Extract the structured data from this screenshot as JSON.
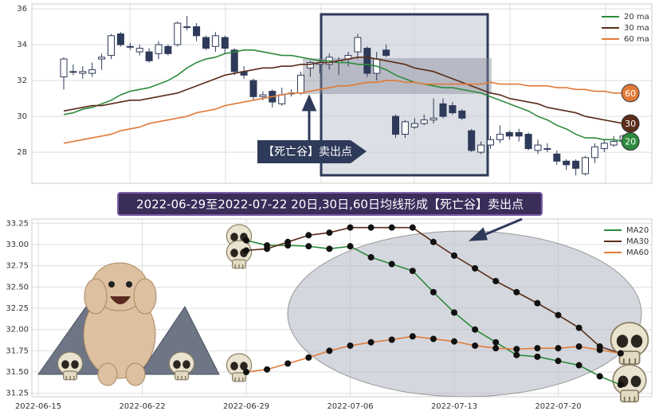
{
  "chart_data": [
    {
      "type": "candlestick",
      "open": [
        32.2,
        32.5,
        32.4,
        32.4,
        33.2,
        33.4,
        34.6,
        33.9,
        33.6,
        33.6,
        33.5,
        33.9,
        34.0,
        35.0,
        35.0,
        34.4,
        33.9,
        34.4,
        33.7,
        32.5,
        32.0,
        31.1,
        31.4,
        30.7,
        31.3,
        31.3,
        32.7,
        32.9,
        32.9,
        33.0,
        33.2,
        33.6,
        33.8,
        32.4,
        33.7,
        30.0,
        29.0,
        29.4,
        29.6,
        29.8,
        30.7,
        30.6,
        30.3,
        29.2,
        28.0,
        28.4,
        28.7,
        29.1,
        29.1,
        29.0,
        28.1,
        28.2,
        27.9,
        27.5,
        27.5,
        26.8,
        27.7,
        28.2,
        28.4,
        28.6
      ],
      "high": [
        33.3,
        32.9,
        32.8,
        33.0,
        33.5,
        34.6,
        34.7,
        34.1,
        34.0,
        33.8,
        34.2,
        34.0,
        35.3,
        35.6,
        35.2,
        34.5,
        34.7,
        34.5,
        33.8,
        32.8,
        32.1,
        31.4,
        31.5,
        31.6,
        31.5,
        32.5,
        33.1,
        33.2,
        33.5,
        33.3,
        33.6,
        34.6,
        33.9,
        33.6,
        34.0,
        30.1,
        29.8,
        29.9,
        30.1,
        31.0,
        31.0,
        30.8,
        30.4,
        29.3,
        28.6,
        28.9,
        29.5,
        29.2,
        29.3,
        29.1,
        28.7,
        28.5,
        28.1,
        27.6,
        27.6,
        27.8,
        28.5,
        28.7,
        28.9,
        29.0
      ],
      "low": [
        31.5,
        32.3,
        32.1,
        32.2,
        32.6,
        33.2,
        33.9,
        33.7,
        33.4,
        33.0,
        33.2,
        33.4,
        33.9,
        34.8,
        34.2,
        33.7,
        33.6,
        33.5,
        32.3,
        32.1,
        30.9,
        30.9,
        30.5,
        30.6,
        31.1,
        31.2,
        32.2,
        32.4,
        32.6,
        32.3,
        32.8,
        33.2,
        32.2,
        32.0,
        33.3,
        28.8,
        28.8,
        29.3,
        29.5,
        29.6,
        29.9,
        30.1,
        29.8,
        28.0,
        27.9,
        28.2,
        28.5,
        28.7,
        28.6,
        28.1,
        27.9,
        28.0,
        27.3,
        27.0,
        26.7,
        26.7,
        27.4,
        28.0,
        28.3,
        28.5
      ],
      "close": [
        33.2,
        32.5,
        32.5,
        32.6,
        33.3,
        34.5,
        34.0,
        33.9,
        33.8,
        33.1,
        34.0,
        33.5,
        35.2,
        35.0,
        34.5,
        33.8,
        34.5,
        33.8,
        32.5,
        32.3,
        31.1,
        31.2,
        30.8,
        31.2,
        31.3,
        32.3,
        33.0,
        33.0,
        33.3,
        33.1,
        33.4,
        34.4,
        32.4,
        33.2,
        33.4,
        29.0,
        29.7,
        29.6,
        29.8,
        29.9,
        30.0,
        30.2,
        29.9,
        28.1,
        28.4,
        28.7,
        29.0,
        28.9,
        28.9,
        28.2,
        28.4,
        28.2,
        27.5,
        27.3,
        27.1,
        27.7,
        28.3,
        28.5,
        28.6,
        28.9
      ],
      "series": [
        {
          "name": "20 ma",
          "badge": "20",
          "color": "#2e8b3e",
          "values": [
            30.1,
            30.2,
            30.4,
            30.5,
            30.7,
            30.9,
            31.2,
            31.4,
            31.5,
            31.6,
            31.8,
            32.0,
            32.3,
            32.7,
            33.0,
            33.2,
            33.3,
            33.5,
            33.6,
            33.7,
            33.7,
            33.6,
            33.5,
            33.4,
            33.4,
            33.3,
            33.2,
            33.1,
            33.1,
            33.0,
            33.0,
            32.9,
            32.9,
            32.8,
            32.6,
            32.3,
            32.1,
            31.9,
            31.8,
            31.7,
            31.6,
            31.6,
            31.5,
            31.4,
            31.3,
            31.1,
            30.9,
            30.7,
            30.5,
            30.3,
            30.0,
            29.8,
            29.5,
            29.3,
            29.0,
            28.8,
            28.8,
            28.7,
            28.7,
            28.6
          ]
        },
        {
          "name": "30 ma",
          "badge": "30",
          "color": "#5a2d1a",
          "values": [
            30.3,
            30.4,
            30.5,
            30.6,
            30.6,
            30.7,
            30.8,
            30.9,
            30.9,
            31.0,
            31.1,
            31.2,
            31.3,
            31.5,
            31.7,
            31.9,
            32.1,
            32.3,
            32.4,
            32.5,
            32.6,
            32.7,
            32.7,
            32.8,
            32.8,
            32.9,
            32.9,
            33.0,
            33.0,
            33.1,
            33.2,
            33.3,
            33.3,
            33.2,
            33.1,
            33.0,
            32.9,
            32.7,
            32.6,
            32.5,
            32.3,
            32.1,
            31.9,
            31.7,
            31.5,
            31.3,
            31.2,
            31.0,
            30.9,
            30.8,
            30.7,
            30.5,
            30.4,
            30.3,
            30.2,
            30.0,
            29.9,
            29.8,
            29.7,
            29.6
          ]
        },
        {
          "name": "60 ma",
          "badge": "60",
          "color": "#e07b39",
          "values": [
            28.5,
            28.6,
            28.7,
            28.8,
            28.9,
            29.0,
            29.2,
            29.3,
            29.4,
            29.6,
            29.7,
            29.8,
            29.9,
            30.0,
            30.2,
            30.3,
            30.4,
            30.6,
            30.7,
            30.8,
            30.9,
            31.0,
            31.1,
            31.2,
            31.3,
            31.3,
            31.4,
            31.5,
            31.6,
            31.7,
            31.7,
            31.8,
            31.9,
            31.9,
            32.0,
            32.0,
            31.9,
            31.9,
            31.8,
            31.8,
            31.8,
            31.8,
            31.8,
            31.8,
            31.8,
            31.9,
            31.8,
            31.8,
            31.8,
            31.7,
            31.7,
            31.7,
            31.6,
            31.6,
            31.5,
            31.5,
            31.4,
            31.4,
            31.3,
            31.3
          ]
        }
      ],
      "ylim": [
        26.27,
        36.27
      ],
      "yticks": [
        28,
        30,
        32,
        34,
        36
      ],
      "grid": true,
      "legend": "upper right",
      "annotation": "【死亡谷】卖出点"
    },
    {
      "type": "line",
      "title": "2022-06-29至2022-07-22 20日,30日,60日均线形成【死亡谷】卖出点",
      "x": [
        "2022-06-29",
        "2022-06-30",
        "2022-07-01",
        "2022-07-04",
        "2022-07-05",
        "2022-07-06",
        "2022-07-07",
        "2022-07-08",
        "2022-07-11",
        "2022-07-12",
        "2022-07-13",
        "2022-07-14",
        "2022-07-15",
        "2022-07-18",
        "2022-07-19",
        "2022-07-20",
        "2022-07-21",
        "2022-07-22",
        "2022-07-25"
      ],
      "series": [
        {
          "name": "MA20",
          "color": "#2e8b3e",
          "values": [
            33.05,
            32.99,
            32.99,
            32.98,
            32.95,
            32.98,
            32.85,
            32.77,
            32.69,
            32.44,
            32.2,
            32.0,
            31.85,
            31.7,
            31.68,
            31.63,
            31.58,
            31.45,
            31.35
          ]
        },
        {
          "name": "MA30",
          "color": "#5a2d1a",
          "values": [
            32.93,
            32.95,
            33.03,
            33.11,
            33.14,
            33.2,
            33.2,
            33.2,
            33.2,
            33.03,
            32.87,
            32.72,
            32.57,
            32.44,
            32.31,
            32.17,
            32.02,
            31.8,
            31.72
          ]
        },
        {
          "name": "MA60",
          "color": "#e07b39",
          "values": [
            31.5,
            31.53,
            31.6,
            31.67,
            31.75,
            31.81,
            31.85,
            31.88,
            31.92,
            31.89,
            31.86,
            31.81,
            31.78,
            31.77,
            31.78,
            31.78,
            31.8,
            31.76,
            31.72
          ]
        }
      ],
      "xticks": [
        "2022-06-15",
        "2022-06-22",
        "2022-06-29",
        "2022-07-06",
        "2022-07-13",
        "2022-07-20"
      ],
      "ylim": [
        31.21,
        33.3
      ],
      "yticks": [
        31.25,
        {
          "value": 31.5,
          "label": "31.50"
        },
        31.75,
        {
          "value": 32,
          "label": "32.00"
        },
        32.25,
        {
          "value": 32.5,
          "label": "32.50"
        },
        32.75,
        {
          "value": 33,
          "label": "33.00"
        },
        33.25
      ],
      "grid": true,
      "legend": "upper right"
    }
  ]
}
